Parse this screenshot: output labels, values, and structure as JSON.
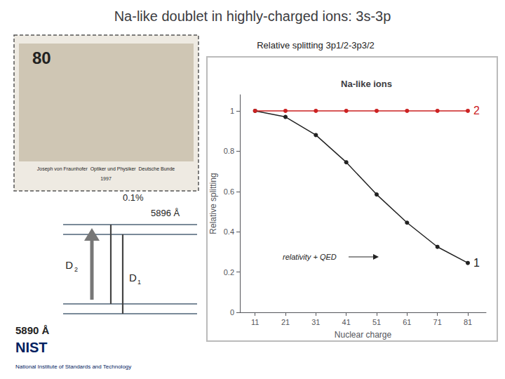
{
  "chart_data": {
    "type": "line",
    "title": "Na-like doublet in highly-charged ions: 3s-3p",
    "subtitle": "Na-like ions",
    "x_label": "Nuclear charge",
    "y_label": "Relative splitting",
    "x": [
      11,
      21,
      31,
      41,
      51,
      61,
      71,
      81
    ],
    "series": [
      {
        "name": "1",
        "color": "#222222",
        "marker": "circle",
        "values": [
          1.0,
          0.97,
          0.88,
          0.745,
          0.585,
          0.445,
          0.325,
          0.245
        ]
      },
      {
        "name": "2",
        "color": "#cc2222",
        "marker": "circle",
        "values": [
          1.0,
          1.0,
          1.0,
          1.0,
          1.0,
          1.0,
          1.0,
          1.0
        ]
      }
    ],
    "xlim": [
      6,
      87
    ],
    "xticks": [
      11,
      21,
      31,
      41,
      51,
      61,
      71,
      81
    ],
    "ylim": [
      0,
      1.08
    ],
    "yticks": [
      0,
      0.2,
      0.4,
      0.6,
      0.8,
      1
    ],
    "grid": false,
    "annotations": [
      "Relative splitting 3p1/2-3p3/2",
      "relativity + QED",
      "80",
      "Joseph von Fraunhofer  Optiker und Physiker  Deutsche Bunde",
      "1997",
      "0.1%",
      "D",
      "2",
      "D",
      "1",
      "5896 Å",
      "5890 Å",
      "NIST",
      "National Institute of Standards and Technology"
    ]
  }
}
